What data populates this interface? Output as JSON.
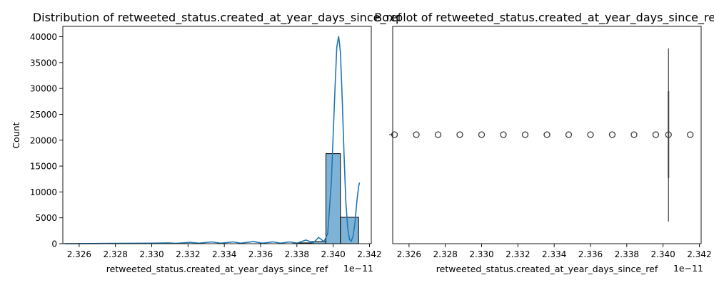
{
  "figure": {
    "background": "#ffffff",
    "bar_fill": "#7fb3d5",
    "line_color": "#1f77b4",
    "edge_color": "#000000"
  },
  "chart_data": [
    {
      "type": "bar",
      "subtype": "histogram-with-kde",
      "title": "Distribution of retweeted_status.created_at_year_days_since_ref",
      "xlabel": "retweeted_status.created_at_year_days_since_ref",
      "ylabel": "Count",
      "x_offset_text": "1e−11",
      "x_scale": 1e-11,
      "xlim": [
        2.3251,
        2.3421
      ],
      "ylim": [
        0,
        42000
      ],
      "x_ticks": [
        "2.326",
        "2.328",
        "2.330",
        "2.332",
        "2.334",
        "2.336",
        "2.338",
        "2.340",
        "2.342"
      ],
      "y_ticks": [
        "0",
        "5000",
        "10000",
        "15000",
        "20000",
        "25000",
        "30000",
        "35000",
        "40000"
      ],
      "bins": [
        {
          "x0": 2.3378,
          "x1": 2.3388,
          "count": 150
        },
        {
          "x0": 2.3388,
          "x1": 2.3396,
          "count": 400
        },
        {
          "x0": 2.3396,
          "x1": 2.3404,
          "count": 17400
        },
        {
          "x0": 2.3404,
          "x1": 2.3414,
          "count": 5100
        }
      ],
      "kde": [
        [
          2.3252,
          0
        ],
        [
          2.3265,
          30
        ],
        [
          2.3278,
          60
        ],
        [
          2.329,
          80
        ],
        [
          2.33,
          100
        ],
        [
          2.3309,
          150
        ],
        [
          2.3313,
          60
        ],
        [
          2.3321,
          250
        ],
        [
          2.3326,
          100
        ],
        [
          2.3333,
          350
        ],
        [
          2.3338,
          100
        ],
        [
          2.3345,
          350
        ],
        [
          2.3349,
          100
        ],
        [
          2.3356,
          400
        ],
        [
          2.3361,
          100
        ],
        [
          2.3367,
          350
        ],
        [
          2.3371,
          100
        ],
        [
          2.3376,
          350
        ],
        [
          2.338,
          100
        ],
        [
          2.3385,
          700
        ],
        [
          2.3389,
          150
        ],
        [
          2.3392,
          1200
        ],
        [
          2.3395,
          400
        ],
        [
          2.3397,
          2000
        ],
        [
          2.3399,
          12000
        ],
        [
          2.3401,
          30000
        ],
        [
          2.3402,
          38000
        ],
        [
          2.3403,
          40100
        ],
        [
          2.3404,
          37000
        ],
        [
          2.3405,
          28000
        ],
        [
          2.3406,
          17000
        ],
        [
          2.3407,
          8000
        ],
        [
          2.3408,
          3000
        ],
        [
          2.3409,
          800
        ],
        [
          2.341,
          500
        ],
        [
          2.3411,
          1500
        ],
        [
          2.3412,
          4000
        ],
        [
          2.3413,
          8000
        ],
        [
          2.3414,
          11000
        ],
        [
          2.34145,
          11800
        ]
      ]
    },
    {
      "type": "boxplot",
      "title": "Boxplot of retweeted_status.created_at_year_days_since_ref",
      "xlabel": "retweeted_status.created_at_year_days_since_ref",
      "x_offset_text": "1e−11",
      "x_scale": 1e-11,
      "xlim": [
        2.3251,
        2.3421
      ],
      "x_ticks": [
        "2.326",
        "2.328",
        "2.330",
        "2.332",
        "2.334",
        "2.336",
        "2.338",
        "2.340",
        "2.342"
      ],
      "box": {
        "q1": 2.3403,
        "median": 2.3403,
        "q3": 2.3403,
        "whisker_low": 2.3403,
        "whisker_high": 2.3403
      },
      "outliers": [
        2.3252,
        2.3264,
        2.3276,
        2.3288,
        2.33,
        2.3312,
        2.3324,
        2.3336,
        2.3348,
        2.336,
        2.3372,
        2.3384,
        2.3396,
        2.3415
      ]
    }
  ]
}
